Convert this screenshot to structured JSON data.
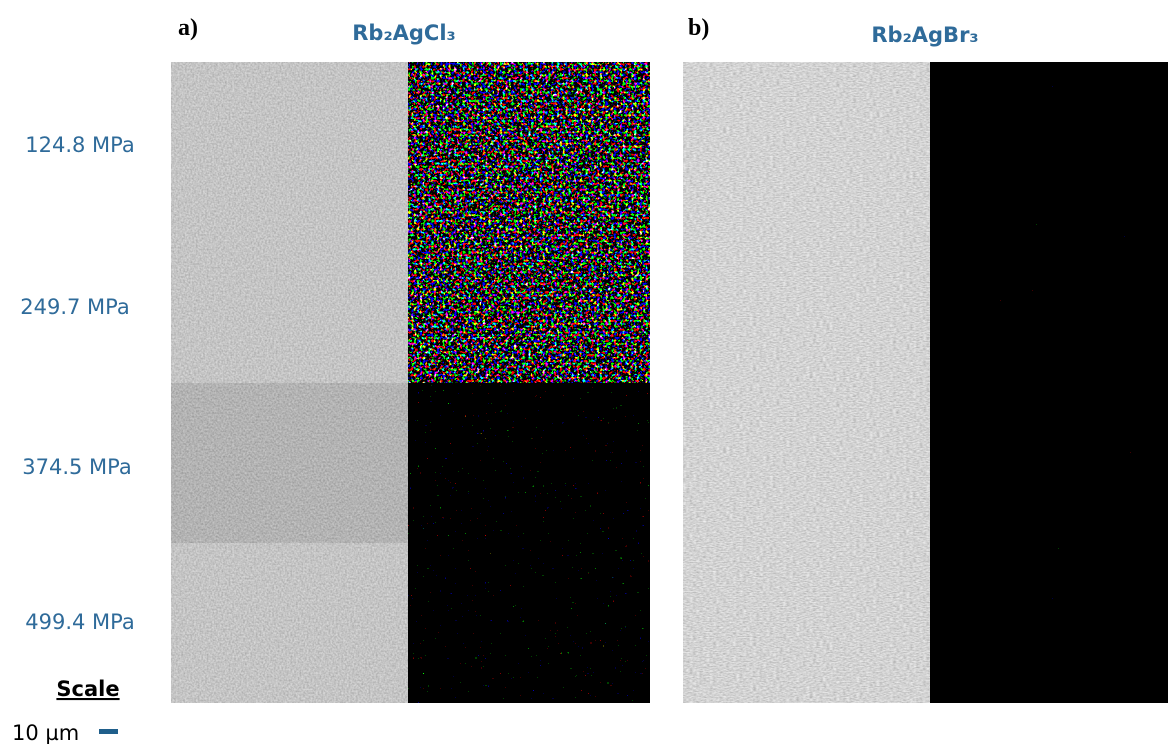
{
  "panels": [
    {
      "label": "a)",
      "title": "Rb₂AgCl₃"
    },
    {
      "label": "b)",
      "title": "Rb₂AgBr₃"
    }
  ],
  "pressures": [
    "124.8 MPa",
    "249.7 MPa",
    "374.5 MPa",
    "499.4 MPa"
  ],
  "scale": {
    "heading": "Scale",
    "length": "10 µm"
  }
}
